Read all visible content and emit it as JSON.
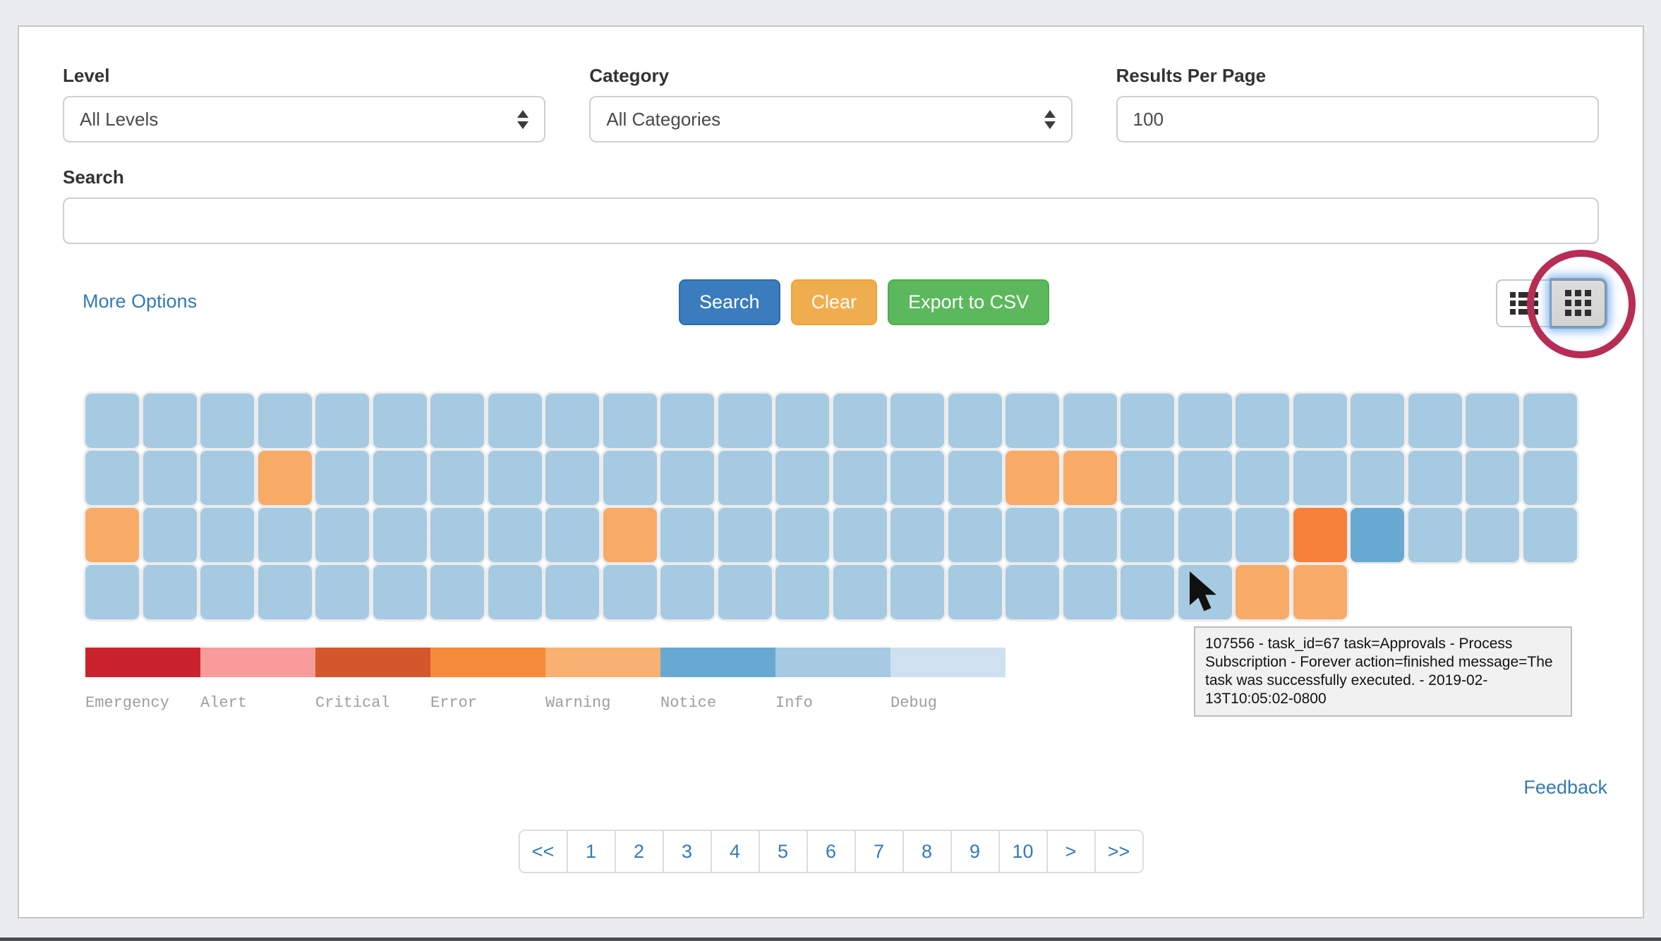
{
  "page": {
    "background": "#e9edf0",
    "card_background": "#ffffff"
  },
  "filters": {
    "level": {
      "label": "Level",
      "value": "All Levels"
    },
    "category": {
      "label": "Category",
      "value": "All Categories"
    },
    "results_per_page": {
      "label": "Results Per Page",
      "value": "100"
    },
    "search": {
      "label": "Search",
      "value": "",
      "placeholder": ""
    }
  },
  "actions": {
    "more_options_label": "More Options",
    "search_label": "Search",
    "clear_label": "Clear",
    "export_label": "Export to CSV"
  },
  "view_toggle": {
    "active": "grid",
    "buttons": [
      {
        "name": "list-view",
        "icon": "list-icon"
      },
      {
        "name": "grid-view",
        "icon": "grid-icon"
      }
    ],
    "annotation_circle_color": "#b72d56"
  },
  "log_grid": {
    "columns": 26,
    "total_cells": 100,
    "cell_colors": {
      "info": "#a5cae2",
      "warning": "#f8aa67",
      "error": "#f5813a",
      "notice": "#68a9d2"
    },
    "rows_runlength": [
      [
        [
          "info",
          26
        ]
      ],
      [
        [
          "info",
          3
        ],
        [
          "warning",
          1
        ],
        [
          "info",
          12
        ],
        [
          "warning",
          2
        ],
        [
          "info",
          8
        ]
      ],
      [
        [
          "warning",
          1
        ],
        [
          "info",
          8
        ],
        [
          "warning",
          1
        ],
        [
          "info",
          11
        ],
        [
          "error",
          1
        ],
        [
          "notice",
          1
        ],
        [
          "info",
          3
        ]
      ],
      [
        [
          "info",
          20
        ],
        [
          "warning",
          2
        ]
      ]
    ]
  },
  "legend": {
    "items": [
      {
        "label": "Emergency",
        "color": "#c9242d"
      },
      {
        "label": "Alert",
        "color": "#f89b9b"
      },
      {
        "label": "Critical",
        "color": "#d4562b"
      },
      {
        "label": "Error",
        "color": "#f68b3c"
      },
      {
        "label": "Warning",
        "color": "#f8b170"
      },
      {
        "label": "Notice",
        "color": "#68a9d2"
      },
      {
        "label": "Info",
        "color": "#a5cae2"
      },
      {
        "label": "Debug",
        "color": "#cfe0f1"
      }
    ]
  },
  "tooltip": {
    "text": "107556 - task_id=67 task=Approvals - Process Subscription - Forever action=finished message=The task was successfully executed. - 2019-02-13T10:05:02-0800"
  },
  "pagination": {
    "items": [
      "<<",
      "1",
      "2",
      "3",
      "4",
      "5",
      "6",
      "7",
      "8",
      "9",
      "10",
      ">",
      ">>"
    ]
  },
  "footer": {
    "feedback_label": "Feedback"
  }
}
